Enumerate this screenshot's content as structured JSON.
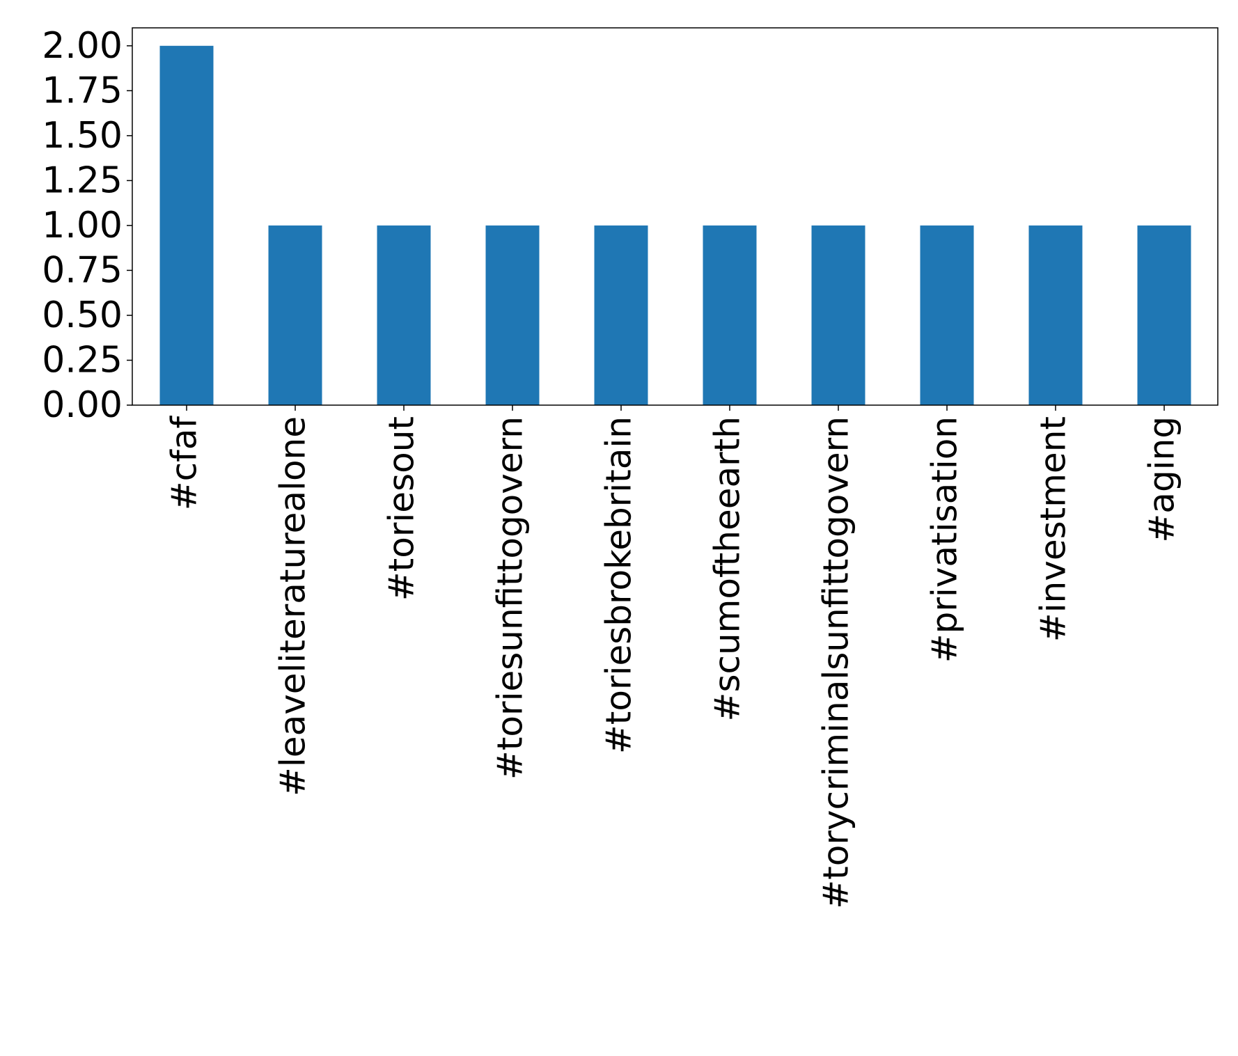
{
  "chart_data": {
    "type": "bar",
    "title": "",
    "xlabel": "",
    "ylabel": "",
    "categories": [
      "#cfaf",
      "#leaveliteraturealone",
      "#toriesout",
      "#toriesunfittogovern",
      "#toriesbrokebritain",
      "#scumoftheearth",
      "#torycriminalsunfittogovern",
      "#privatisation",
      "#investment",
      "#aging"
    ],
    "values": [
      2,
      1,
      1,
      1,
      1,
      1,
      1,
      1,
      1,
      1
    ],
    "ylim": [
      0,
      2.1
    ],
    "yticks": [
      "0.00",
      "0.25",
      "0.50",
      "0.75",
      "1.00",
      "1.25",
      "1.50",
      "1.75",
      "2.00"
    ],
    "bar_color": "#1f77b4",
    "grid": false,
    "legend": "none"
  }
}
